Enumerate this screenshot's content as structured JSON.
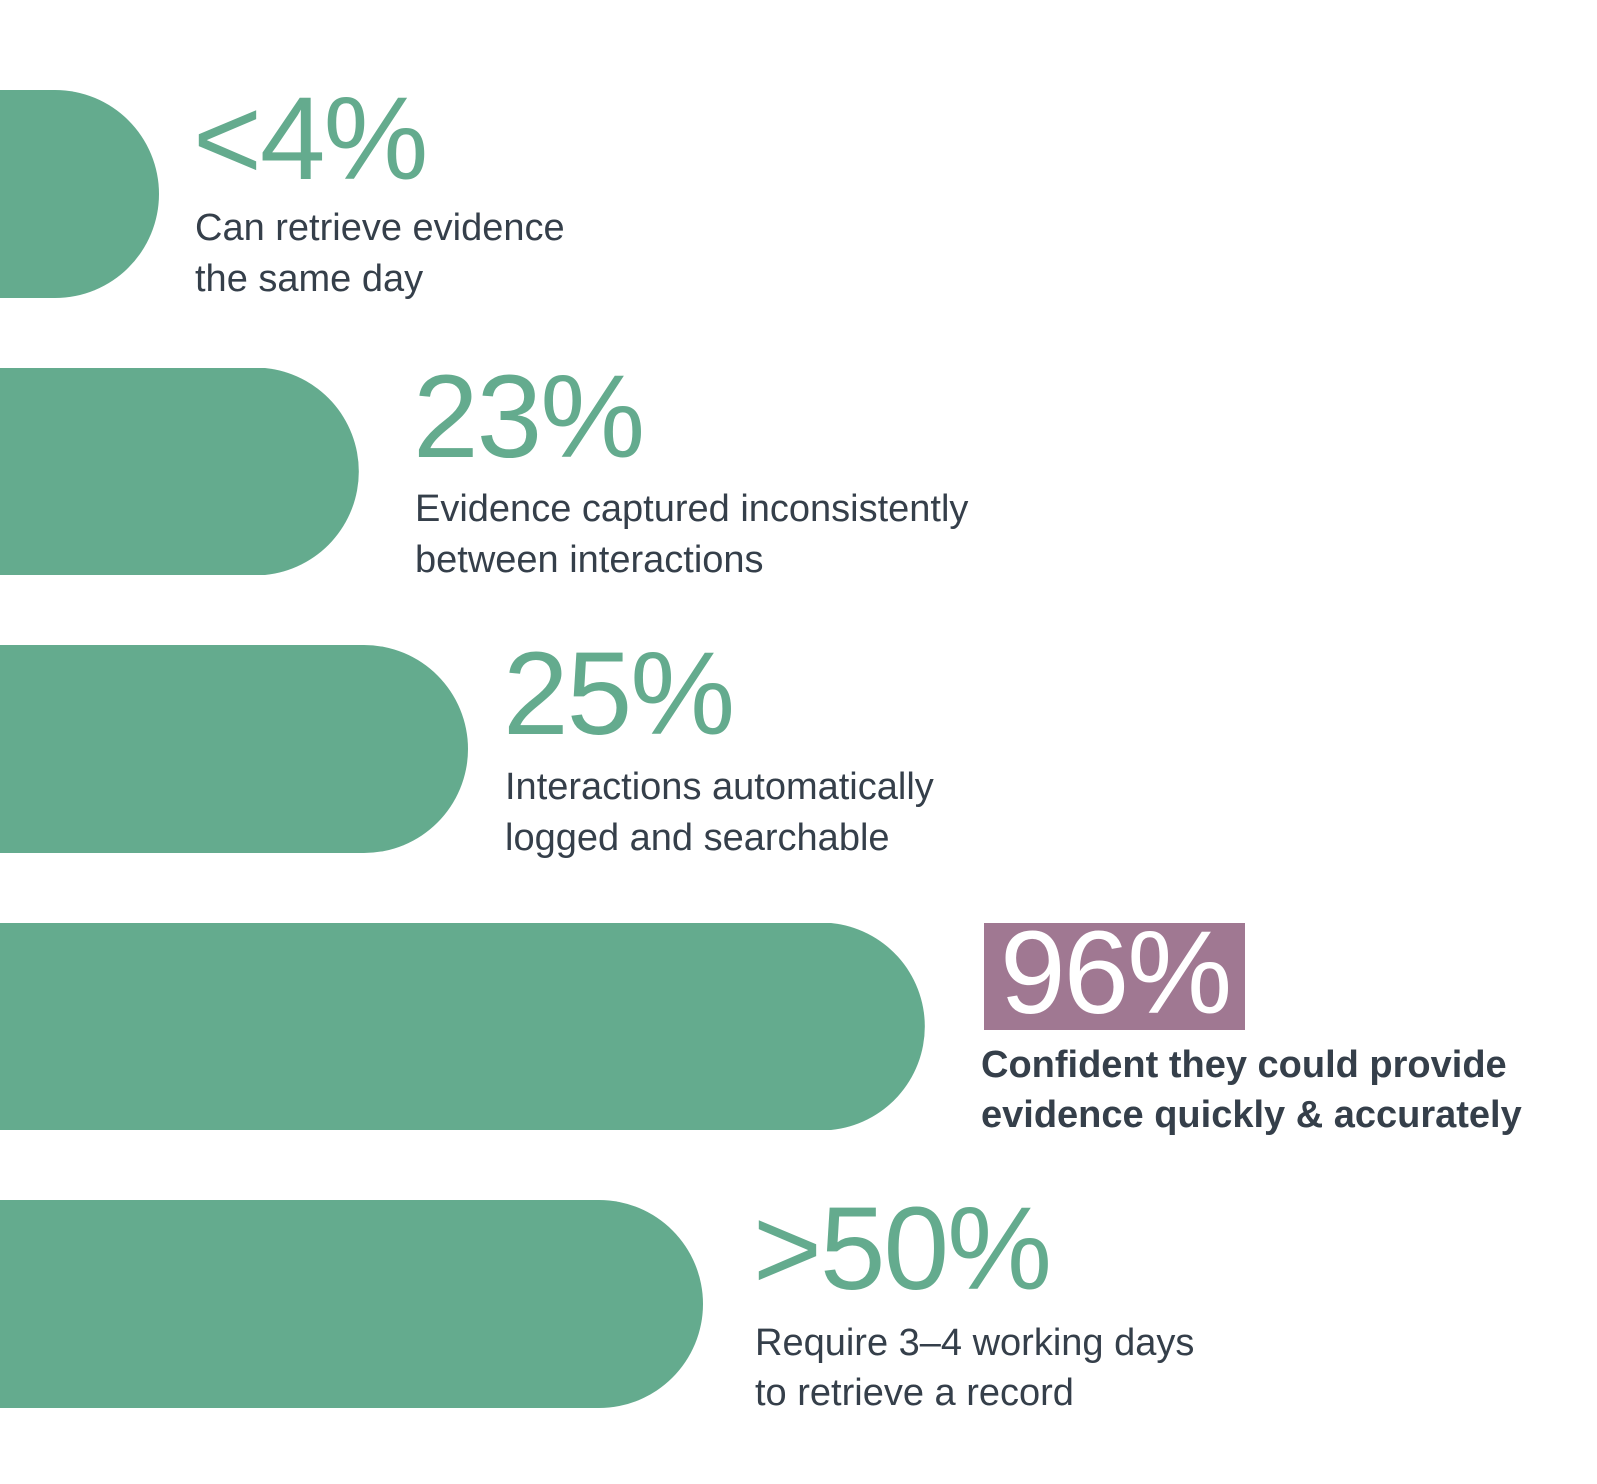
{
  "items": [
    {
      "stat": "<4%",
      "description": [
        "Can retrieve evidence",
        "the same day"
      ]
    },
    {
      "stat": "23%",
      "description": [
        "Evidence captured inconsistently",
        "between interactions"
      ]
    },
    {
      "stat": "25%",
      "description": [
        "Interactions automatically",
        "logged and searchable"
      ]
    },
    {
      "stat": "96%",
      "description": [
        "Confident they could provide",
        "evidence quickly & accurately"
      ]
    },
    {
      "stat": ">50%",
      "description": [
        "Require 3–4 working days",
        "to retrieve a record"
      ]
    }
  ]
}
